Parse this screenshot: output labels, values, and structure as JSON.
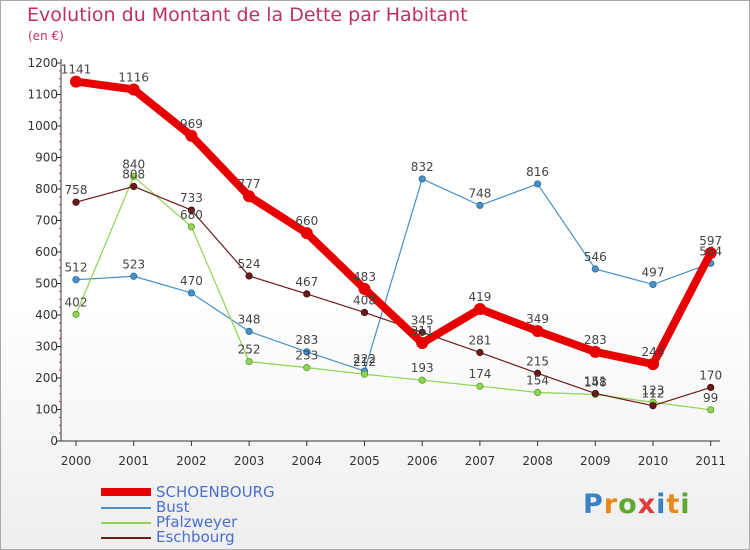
{
  "title": "Evolution du Montant de la Dette par Habitant",
  "subtitle": "(en €)",
  "logo": {
    "text": "Proxiti",
    "letter_colors": [
      "#3b82c4",
      "#e8891c",
      "#5fa832",
      "#e03c3c",
      "#3b82c4",
      "#e8891c",
      "#5fa832"
    ]
  },
  "chart_data": {
    "type": "line",
    "title": "Evolution du Montant de la Dette par Habitant",
    "subtitle": "(en €)",
    "xlabel": "",
    "ylabel": "",
    "x": [
      "2000",
      "2001",
      "2002",
      "2003",
      "2004",
      "2005",
      "2006",
      "2007",
      "2008",
      "2009",
      "2010",
      "2011"
    ],
    "ylim": [
      0,
      1200
    ],
    "yticks": [
      0,
      100,
      200,
      300,
      400,
      500,
      600,
      700,
      800,
      900,
      1000,
      1100,
      1200
    ],
    "grid": false,
    "legend_position": "bottom-left",
    "series": [
      {
        "name": "SCHOENBOURG",
        "color": "#e60000",
        "values": [
          1141,
          1116,
          969,
          777,
          660,
          483,
          311,
          419,
          349,
          283,
          244,
          597
        ],
        "labels": [
          "1141",
          "1116",
          "969",
          "777",
          "660",
          "483",
          "311",
          "419",
          "349",
          "283",
          "244",
          "597"
        ]
      },
      {
        "name": "Bust",
        "color": "#4a90c8",
        "values": [
          512,
          523,
          470,
          348,
          283,
          222,
          832,
          748,
          816,
          546,
          497,
          564
        ],
        "labels": [
          "512",
          "523",
          "470",
          "348",
          "283",
          "222",
          "832",
          "748",
          "816",
          "546",
          "497",
          "564"
        ]
      },
      {
        "name": "Pfalzweyer",
        "color": "#8fd454",
        "values": [
          402,
          840,
          680,
          252,
          233,
          212,
          193,
          174,
          154,
          148,
          123,
          99
        ],
        "labels": [
          "402",
          "840",
          "680",
          "252",
          "233",
          "212",
          "193",
          "174",
          "154",
          "148",
          "123",
          "99"
        ]
      },
      {
        "name": "Eschbourg",
        "color": "#6b1a1a",
        "values": [
          758,
          808,
          733,
          524,
          467,
          408,
          345,
          281,
          215,
          151,
          112,
          170
        ],
        "labels": [
          "758",
          "808",
          "733",
          "524",
          "467",
          "408",
          "345",
          "281",
          "215",
          "151",
          "112",
          "170"
        ]
      }
    ]
  }
}
